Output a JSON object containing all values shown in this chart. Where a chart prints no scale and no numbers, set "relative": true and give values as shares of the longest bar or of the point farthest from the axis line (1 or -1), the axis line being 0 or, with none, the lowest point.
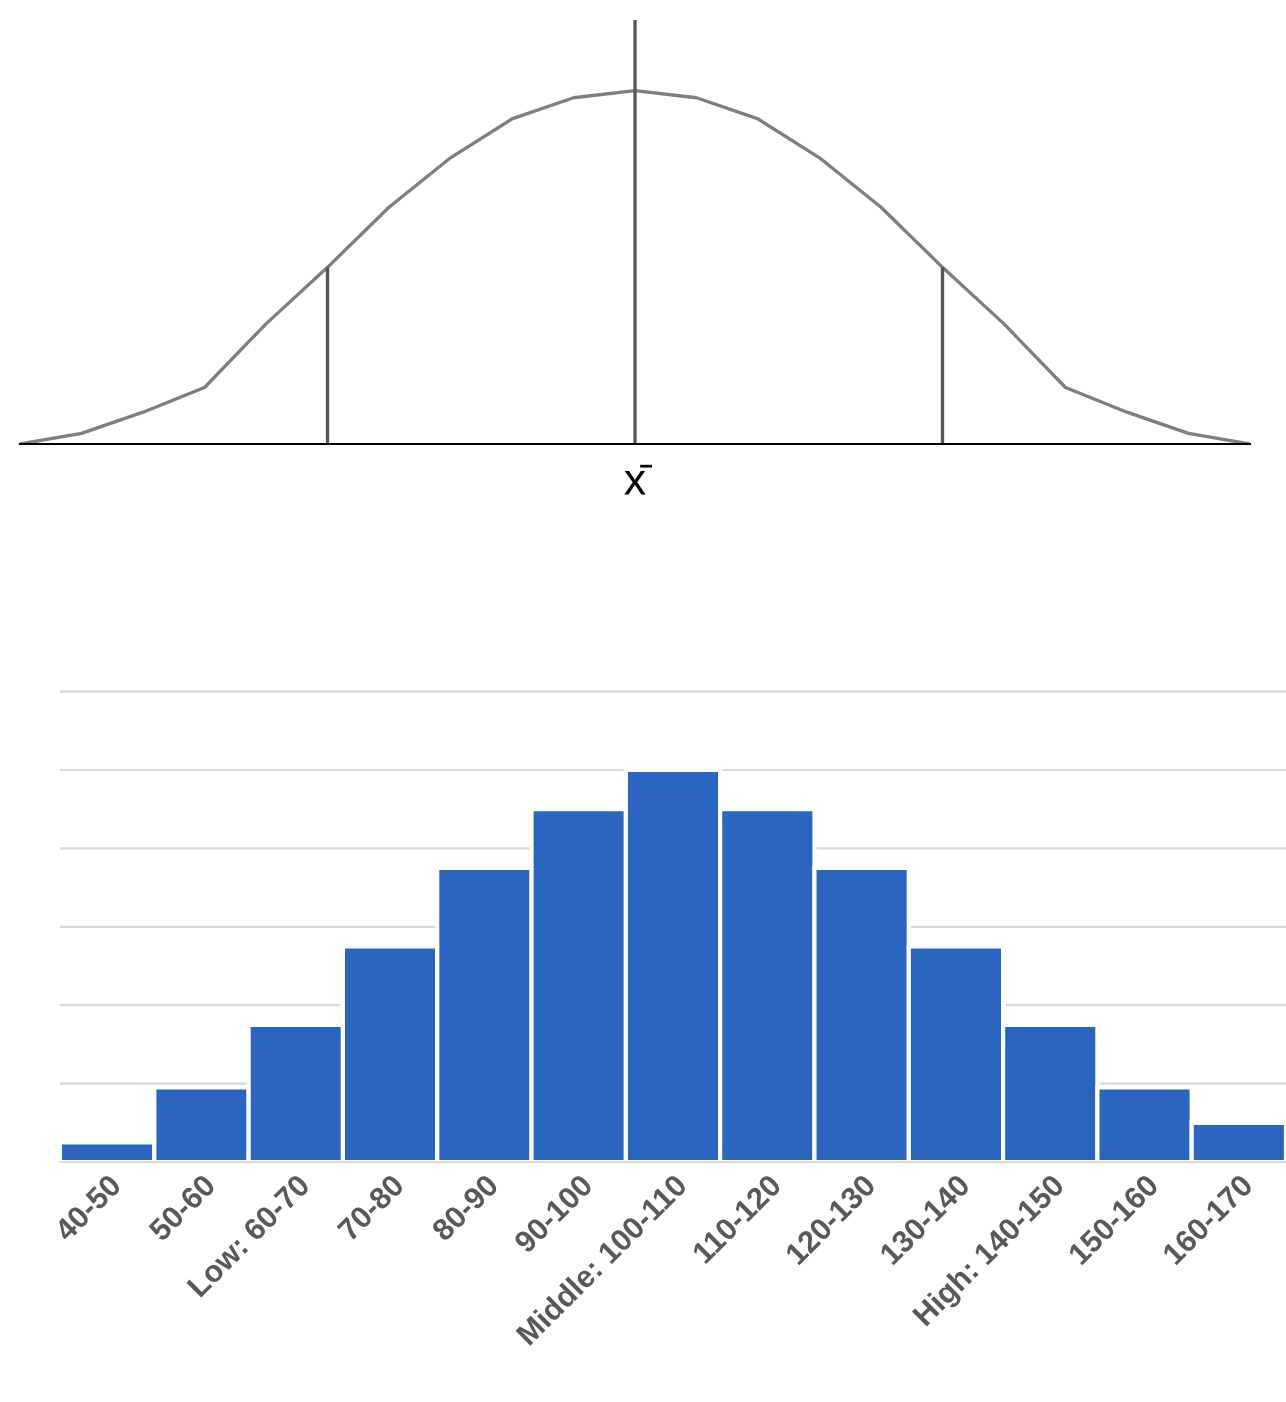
{
  "chart_data": [
    {
      "type": "line",
      "relative": true,
      "tick_labels": false,
      "grid": false,
      "marker": "none",
      "line_style": "solid",
      "categories": [
        null,
        null,
        null,
        null,
        null,
        null,
        null,
        null,
        null,
        null,
        null,
        null,
        null,
        null,
        null,
        null,
        null,
        null,
        null,
        null,
        null
      ],
      "series": [
        {
          "color": "#7f7f7f",
          "values": [
            0,
            0.03,
            0.09,
            0.16,
            0.34,
            0.5,
            0.67,
            0.81,
            0.92,
            0.98,
            1,
            0.98,
            0.92,
            0.81,
            0.67,
            0.5,
            0.34,
            0.16,
            0.09,
            0.03,
            0
          ]
        }
      ],
      "annotations": [
        "x̄"
      ]
    },
    {
      "type": "bar",
      "relative": true,
      "tick_labels": "x",
      "grid": "y",
      "color": "#2a66c0",
      "categories": [
        "40-50",
        "50-60",
        "Low: 60-70",
        "70-80",
        "80-90",
        "90-100",
        "Middle: 100-110",
        "110-120",
        "120-130",
        "130-140",
        "High: 140-150",
        "150-160",
        "160-170"
      ],
      "values": [
        0.05,
        0.19,
        0.35,
        0.55,
        0.75,
        0.9,
        1,
        0.9,
        0.75,
        0.55,
        0.35,
        0.19,
        0.1
      ]
    }
  ]
}
